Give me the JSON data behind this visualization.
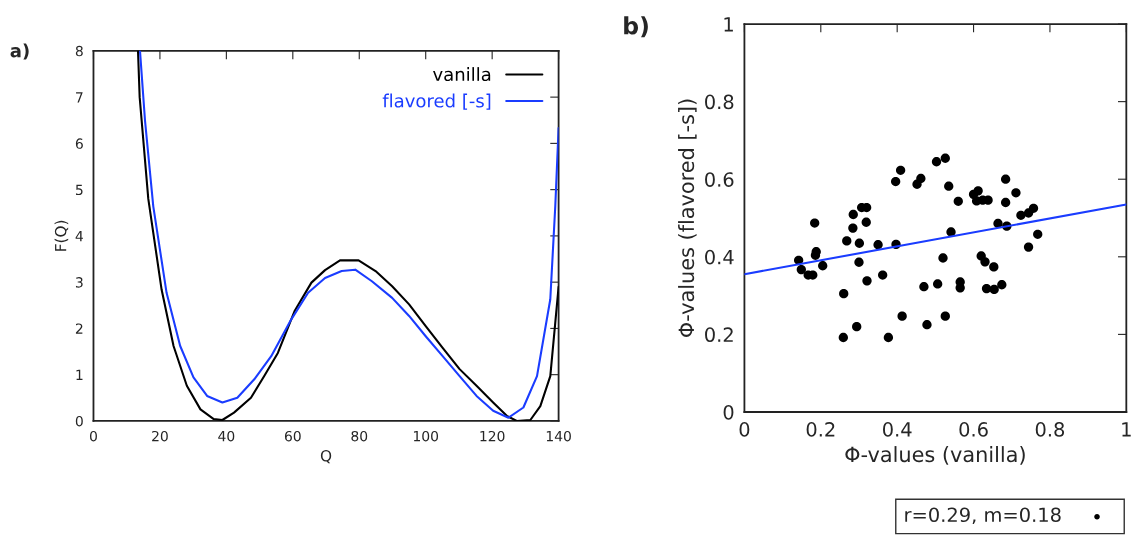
{
  "chart_data": [
    {
      "type": "line",
      "xlabel": "Q",
      "ylabel": "F(Q)",
      "annotations": [
        "a)"
      ],
      "xlim": [
        0,
        140
      ],
      "ylim": [
        0,
        8
      ],
      "xticks": [
        0,
        20,
        40,
        60,
        80,
        100,
        120,
        140
      ],
      "yticks": [
        0,
        1,
        2,
        3,
        4,
        5,
        6,
        7,
        8
      ],
      "grid": false,
      "legend": "top right",
      "line_style": "solid",
      "series": [
        {
          "name": "vanilla",
          "color": "#000000",
          "x": [
            13.4,
            13.9,
            16.5,
            20.5,
            24.1,
            28.1,
            32.2,
            36.2,
            38.8,
            42.3,
            47.4,
            51.4,
            55.5,
            60.5,
            65.6,
            69.7,
            74.2,
            79.8,
            84.9,
            89.9,
            95,
            100,
            105.1,
            110.2,
            115.3,
            120.3,
            124.4,
            127.4,
            131.5,
            134.5,
            137.5,
            140
          ],
          "values": [
            8,
            7.0,
            4.8,
            2.84,
            1.62,
            0.76,
            0.25,
            0.04,
            0.02,
            0.18,
            0.5,
            0.97,
            1.47,
            2.37,
            2.99,
            3.26,
            3.47,
            3.47,
            3.24,
            2.91,
            2.52,
            2.05,
            1.58,
            1.12,
            0.76,
            0.4,
            0.11,
            0,
            0.02,
            0.32,
            0.97,
            2.9
          ]
        },
        {
          "name": "flavored [-s]",
          "color": "#1a3cff",
          "x": [
            14.0,
            15.5,
            18,
            22,
            26.1,
            30.1,
            34.2,
            38.8,
            43.3,
            48.4,
            53.5,
            59.5,
            64.6,
            69.7,
            74.7,
            78.8,
            83.8,
            89.9,
            95,
            100,
            105.1,
            110.2,
            115.3,
            120.3,
            124.9,
            129.4,
            133.5,
            137.5,
            139,
            140
          ],
          "values": [
            8,
            6.5,
            4.64,
            2.77,
            1.62,
            0.94,
            0.54,
            0.4,
            0.5,
            0.9,
            1.4,
            2.19,
            2.77,
            3.09,
            3.24,
            3.27,
            3.02,
            2.66,
            2.27,
            1.83,
            1.4,
            0.97,
            0.54,
            0.22,
            0.07,
            0.29,
            0.97,
            2.63,
            4.64,
            6.33
          ]
        }
      ]
    },
    {
      "type": "scatter",
      "xlabel": "Φ-values (vanilla)",
      "ylabel": "Φ-values (flavored [-s])",
      "annotations": [
        "b)"
      ],
      "xlim": [
        0,
        1
      ],
      "ylim": [
        0,
        1
      ],
      "xticks": [
        0,
        0.2,
        0.4,
        0.6,
        0.8,
        1
      ],
      "yticks": [
        0,
        0.2,
        0.4,
        0.6,
        0.8,
        1
      ],
      "grid": false,
      "legend": "bottom right",
      "series": [
        {
          "type": "scatter",
          "name": "r=0.29, m=0.18",
          "color": "#000000",
          "marker": "circle",
          "x": [
            0.142,
            0.149,
            0.167,
            0.179,
            0.184,
            0.188,
            0.186,
            0.205,
            0.26,
            0.259,
            0.268,
            0.285,
            0.284,
            0.294,
            0.301,
            0.3,
            0.307,
            0.32,
            0.319,
            0.321,
            0.35,
            0.362,
            0.377,
            0.396,
            0.397,
            0.409,
            0.413,
            0.452,
            0.462,
            0.47,
            0.478,
            0.503,
            0.526,
            0.506,
            0.52,
            0.526,
            0.535,
            0.541,
            0.56,
            0.565,
            0.565,
            0.6,
            0.612,
            0.608,
            0.62,
            0.63,
            0.624,
            0.638,
            0.634,
            0.653,
            0.654,
            0.664,
            0.674,
            0.684,
            0.684,
            0.687,
            0.711,
            0.724,
            0.744,
            0.744,
            0.757,
            0.768
          ],
          "values": [
            0.391,
            0.367,
            0.353,
            0.353,
            0.487,
            0.413,
            0.404,
            0.377,
            0.305,
            0.192,
            0.441,
            0.509,
            0.474,
            0.22,
            0.435,
            0.386,
            0.527,
            0.527,
            0.489,
            0.338,
            0.431,
            0.353,
            0.192,
            0.594,
            0.432,
            0.623,
            0.247,
            0.587,
            0.602,
            0.323,
            0.225,
            0.645,
            0.654,
            0.33,
            0.397,
            0.247,
            0.582,
            0.464,
            0.543,
            0.335,
            0.32,
            0.561,
            0.57,
            0.544,
            0.402,
            0.387,
            0.546,
            0.546,
            0.318,
            0.374,
            0.316,
            0.486,
            0.328,
            0.6,
            0.54,
            0.479,
            0.565,
            0.507,
            0.513,
            0.425,
            0.525,
            0.458
          ]
        },
        {
          "type": "line",
          "color": "#1a3cff",
          "x": [
            0,
            1
          ],
          "values": [
            0.355,
            0.535
          ]
        }
      ]
    }
  ]
}
